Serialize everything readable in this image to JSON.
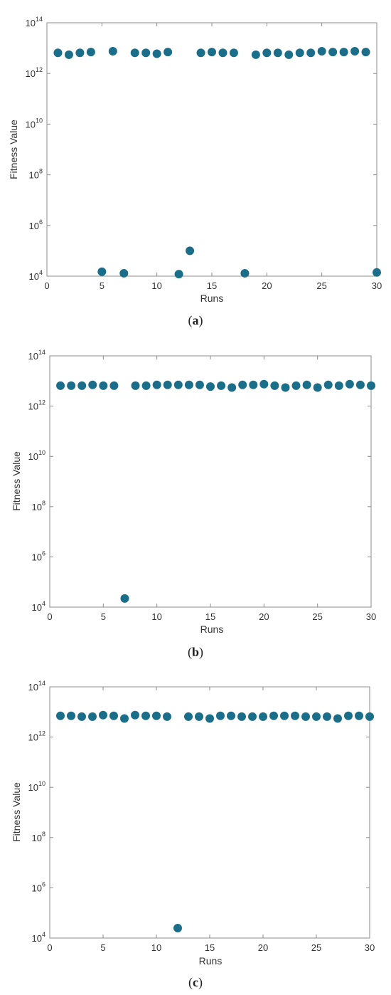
{
  "chart_data": [
    {
      "type": "scatter",
      "title": "",
      "xlabel": "Runs",
      "ylabel": "Fitness Value",
      "caption_letter": "a",
      "xlim": [
        0,
        30
      ],
      "ylim": [
        10000,
        100000000000000
      ],
      "yscale": "log",
      "x_ticks": [
        0,
        5,
        10,
        15,
        20,
        25,
        30
      ],
      "y_ticks": [
        {
          "value": 10000,
          "base": "10",
          "exp": "4"
        },
        {
          "value": 1000000,
          "base": "10",
          "exp": "6"
        },
        {
          "value": 100000000,
          "base": "10",
          "exp": "8"
        },
        {
          "value": 10000000000,
          "base": "10",
          "exp": "10"
        },
        {
          "value": 1000000000000,
          "base": "10",
          "exp": "12"
        },
        {
          "value": 100000000000000,
          "base": "10",
          "exp": "14"
        }
      ],
      "marker_color": "#1b6e8a",
      "x": [
        1,
        2,
        3,
        4,
        5,
        6,
        7,
        8,
        9,
        10,
        11,
        12,
        13,
        14,
        15,
        16,
        17,
        18,
        19,
        20,
        21,
        22,
        23,
        24,
        25,
        26,
        27,
        28,
        29,
        30
      ],
      "y": [
        6500000000000.0,
        5500000000000.0,
        6500000000000.0,
        7000000000000.0,
        15000,
        7500000000000.0,
        13000,
        6500000000000.0,
        6500000000000.0,
        6000000000000.0,
        7000000000000.0,
        12000,
        100000,
        6500000000000.0,
        7000000000000.0,
        6500000000000.0,
        6500000000000.0,
        13000,
        5500000000000.0,
        6500000000000.0,
        6500000000000.0,
        5500000000000.0,
        6500000000000.0,
        6500000000000.0,
        7500000000000.0,
        7000000000000.0,
        7000000000000.0,
        7500000000000.0,
        7000000000000.0,
        14000
      ]
    },
    {
      "type": "scatter",
      "title": "",
      "xlabel": "Runs",
      "ylabel": "Fitness Value",
      "caption_letter": "b",
      "xlim": [
        0,
        30
      ],
      "ylim": [
        10000,
        100000000000000
      ],
      "yscale": "log",
      "x_ticks": [
        0,
        5,
        10,
        15,
        20,
        25,
        30
      ],
      "y_ticks": [
        {
          "value": 10000,
          "base": "10",
          "exp": "4"
        },
        {
          "value": 1000000,
          "base": "10",
          "exp": "6"
        },
        {
          "value": 100000000,
          "base": "10",
          "exp": "8"
        },
        {
          "value": 10000000000,
          "base": "10",
          "exp": "10"
        },
        {
          "value": 1000000000000,
          "base": "10",
          "exp": "12"
        },
        {
          "value": 100000000000000,
          "base": "10",
          "exp": "14"
        }
      ],
      "marker_color": "#1b6e8a",
      "x": [
        1,
        2,
        3,
        4,
        5,
        6,
        7,
        8,
        9,
        10,
        11,
        12,
        13,
        14,
        15,
        16,
        17,
        18,
        19,
        20,
        21,
        22,
        23,
        24,
        25,
        26,
        27,
        28,
        29,
        30
      ],
      "y": [
        6500000000000.0,
        6500000000000.0,
        6500000000000.0,
        7000000000000.0,
        6500000000000.0,
        6500000000000.0,
        22000,
        6500000000000.0,
        6500000000000.0,
        7000000000000.0,
        7000000000000.0,
        7000000000000.0,
        7000000000000.0,
        7000000000000.0,
        6000000000000.0,
        6500000000000.0,
        5500000000000.0,
        7000000000000.0,
        7000000000000.0,
        7500000000000.0,
        6500000000000.0,
        5500000000000.0,
        6500000000000.0,
        7000000000000.0,
        5500000000000.0,
        7000000000000.0,
        6500000000000.0,
        7500000000000.0,
        7000000000000.0,
        6500000000000.0
      ]
    },
    {
      "type": "scatter",
      "title": "",
      "xlabel": "Runs",
      "ylabel": "Fitness Value",
      "caption_letter": "c",
      "xlim": [
        0,
        30
      ],
      "ylim": [
        10000,
        100000000000000
      ],
      "yscale": "log",
      "x_ticks": [
        0,
        5,
        10,
        15,
        20,
        25,
        30
      ],
      "y_ticks": [
        {
          "value": 10000,
          "base": "10",
          "exp": "4"
        },
        {
          "value": 1000000,
          "base": "10",
          "exp": "6"
        },
        {
          "value": 100000000,
          "base": "10",
          "exp": "8"
        },
        {
          "value": 10000000000,
          "base": "10",
          "exp": "10"
        },
        {
          "value": 1000000000000,
          "base": "10",
          "exp": "12"
        },
        {
          "value": 100000000000000,
          "base": "10",
          "exp": "14"
        }
      ],
      "marker_color": "#1b6e8a",
      "x": [
        1,
        2,
        3,
        4,
        5,
        6,
        7,
        8,
        9,
        10,
        11,
        12,
        13,
        14,
        15,
        16,
        17,
        18,
        19,
        20,
        21,
        22,
        23,
        24,
        25,
        26,
        27,
        28,
        29,
        30
      ],
      "y": [
        7000000000000.0,
        7000000000000.0,
        6500000000000.0,
        6500000000000.0,
        7500000000000.0,
        7000000000000.0,
        5500000000000.0,
        7500000000000.0,
        7000000000000.0,
        7000000000000.0,
        6500000000000.0,
        25000,
        6500000000000.0,
        6500000000000.0,
        5500000000000.0,
        7000000000000.0,
        7000000000000.0,
        6500000000000.0,
        6500000000000.0,
        6500000000000.0,
        7000000000000.0,
        7000000000000.0,
        7000000000000.0,
        6500000000000.0,
        6500000000000.0,
        6500000000000.0,
        5500000000000.0,
        7000000000000.0,
        7000000000000.0,
        6500000000000.0
      ]
    }
  ]
}
